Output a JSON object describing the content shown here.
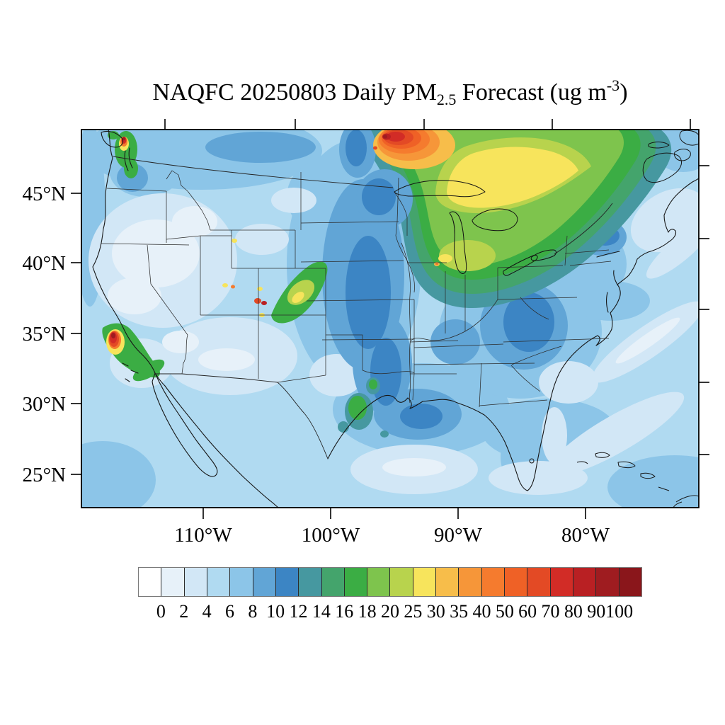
{
  "title": {
    "prefix": "NAQFC 20250803 Daily PM",
    "subscript": "2.5",
    "middle": " Forecast (ug m",
    "superscript": "-3",
    "suffix": ")"
  },
  "map": {
    "lat_labels": [
      "45°N",
      "40°N",
      "35°N",
      "30°N",
      "25°N"
    ],
    "lon_labels": [
      "110°W",
      "100°W",
      "90°W",
      "80°W"
    ]
  },
  "colorbar": {
    "labels": [
      "0",
      "2",
      "4",
      "6",
      "8",
      "10",
      "12",
      "14",
      "16",
      "18",
      "20",
      "25",
      "30",
      "35",
      "40",
      "50",
      "60",
      "70",
      "80",
      "90",
      "100"
    ],
    "colors": [
      "#ffffff",
      "#e7f1f9",
      "#d2e7f6",
      "#b0daf1",
      "#8cc5e8",
      "#61a5d6",
      "#3c85c4",
      "#4698a0",
      "#44a46c",
      "#3bad44",
      "#7ec44d",
      "#b8d34d",
      "#f7e45c",
      "#f7bd4a",
      "#f69639",
      "#f57b2e",
      "#ef6126",
      "#e34a25",
      "#d22c26",
      "#b92023",
      "#9f1c20",
      "#8a161b"
    ]
  },
  "chart_data": {
    "type": "heatmap",
    "title": "NAQFC 20250803 Daily PM2.5 Forecast (ug m-3)",
    "units": "ug m-3",
    "x_tick_labels": [
      "110°W",
      "100°W",
      "90°W",
      "80°W"
    ],
    "y_tick_labels": [
      "45°N",
      "40°N",
      "35°N",
      "30°N",
      "25°N"
    ],
    "colorbar_levels": [
      0,
      2,
      4,
      6,
      8,
      10,
      12,
      14,
      16,
      18,
      20,
      25,
      30,
      35,
      40,
      50,
      60,
      70,
      80,
      90,
      100
    ],
    "legend_position": "bottom",
    "grid": "off",
    "region": "Contiguous United States with southern Canada and northern Mexico",
    "features": [
      {
        "area": "Saskatchewan/Manitoba border plume at top edge near 96W (wildfire smoke)",
        "value": "60 to >100 peak, dark-red core"
      },
      {
        "area": "Arc across southern Canada from plume toward Quebec",
        "value": "25-35 (yellow band)"
      },
      {
        "area": "Upper Midwest, Great Lakes, Ontario, Quebec, northern New England",
        "value": "14-25 (green)"
      },
      {
        "area": "Lower Michigan / Wisconsin shore",
        "value": "20-30 with small 30-50 spot near Chicago"
      },
      {
        "area": "Colorado front-range diagonal streak",
        "value": "16-30 with tiny 60-90 spots"
      },
      {
        "area": "Southern California coastal hotspot (Los Angeles area)",
        "value": "60 to >90 core, 16-40 ring trailing southeast"
      },
      {
        "area": "Pacific Northwest hotspot near Vancouver/Bellingham",
        "value": "25-90 small spot with green surroundings"
      },
      {
        "area": "Utah small spots",
        "value": "25-50"
      },
      {
        "area": "East Texas patches",
        "value": "12-18 (teal/green)"
      },
      {
        "area": "Northern Plains through Kansas/Oklahoma and Ohio Valley/Appalachia bands",
        "value": "8-12 (darker blue)"
      },
      {
        "area": "Interior Nevada/Oregon and desert Southwest",
        "value": "0-4 (palest)"
      },
      {
        "area": "Oceans, Gulf of Mexico, Mexico",
        "value": "2-6 (light blue)"
      }
    ]
  }
}
